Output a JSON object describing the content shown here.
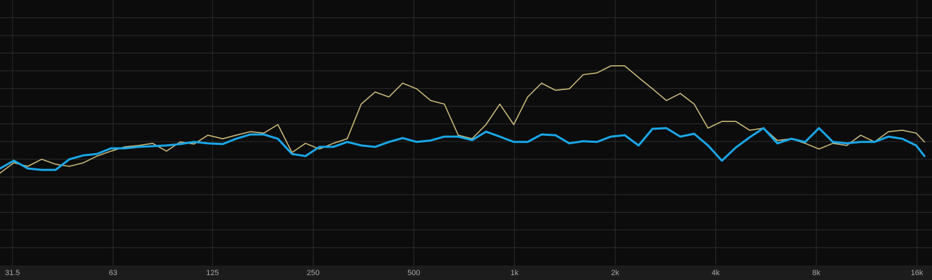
{
  "chart_data": {
    "type": "line",
    "log_x": true,
    "grid": true,
    "xlim": [
      28.9,
      17750
    ],
    "ylim": [
      -40,
      35
    ],
    "xticks": [
      31.5,
      63,
      125,
      250,
      500,
      {
        "value": 1000,
        "label": "1k"
      },
      {
        "value": 2000,
        "label": "2k"
      },
      {
        "value": 4000,
        "label": "4k"
      },
      {
        "value": 8000,
        "label": "8k"
      },
      {
        "value": 16000,
        "label": "16k"
      }
    ],
    "yticks": [
      -35,
      -30,
      -25,
      -20,
      -15,
      -10,
      -5,
      0,
      5,
      10,
      15,
      20,
      25,
      30
    ],
    "x": [
      28.9,
      31.8,
      35.0,
      38.5,
      42.4,
      46.6,
      51.3,
      56.4,
      62.1,
      68.3,
      75.2,
      82.7,
      91.0,
      100,
      110,
      121,
      134,
      147,
      162,
      178,
      196,
      216,
      237,
      261,
      287,
      316,
      348,
      383,
      421,
      463,
      510,
      561,
      617,
      679,
      747,
      822,
      904,
      995,
      1095,
      1205,
      1326,
      1459,
      1605,
      1766,
      1943,
      2138,
      2352,
      2588,
      2848,
      3134,
      3448,
      3794,
      4175,
      4593,
      5054,
      5561,
      6119,
      6732,
      7408,
      8151,
      8968,
      9868,
      10858,
      11947,
      13145,
      14463,
      15914,
      16850
    ],
    "series": [
      {
        "color": "#c8b878",
        "width": 1.6,
        "values": [
          -13.9,
          -11.0,
          -12.0,
          -10.0,
          -11.4,
          -12.0,
          -11.0,
          -9.1,
          -7.7,
          -6.5,
          -6.1,
          -5.5,
          -7.7,
          -5.1,
          -5.7,
          -3.2,
          -4.2,
          -3.2,
          -2.2,
          -2.6,
          -0.2,
          -8.1,
          -5.5,
          -7.1,
          -5.5,
          -4.2,
          5.6,
          9.0,
          7.6,
          11.5,
          9.9,
          6.6,
          5.6,
          -3.2,
          -4.2,
          -0.2,
          5.6,
          -0.2,
          7.6,
          11.5,
          9.5,
          9.9,
          13.9,
          14.4,
          16.4,
          16.4,
          13.1,
          9.9,
          6.6,
          8.6,
          5.6,
          -1.2,
          0.7,
          0.7,
          -1.8,
          -1.2,
          -4.7,
          -4.2,
          -5.5,
          -7.1,
          -5.5,
          -6.1,
          -3.2,
          -5.1,
          -2.2,
          -1.8,
          -2.6,
          -5.1
        ]
      },
      {
        "color": "#1aa7e8",
        "width": 3,
        "values": [
          -12.6,
          -10.4,
          -12.6,
          -13.0,
          -13.0,
          -10.0,
          -8.9,
          -8.5,
          -6.9,
          -6.9,
          -6.5,
          -6.3,
          -6.1,
          -5.7,
          -5.1,
          -5.5,
          -5.7,
          -4.2,
          -3.0,
          -3.0,
          -4.2,
          -8.5,
          -9.1,
          -6.5,
          -6.5,
          -5.1,
          -6.1,
          -6.5,
          -5.1,
          -4.0,
          -5.1,
          -4.7,
          -3.6,
          -3.6,
          -4.6,
          -2.2,
          -3.6,
          -5.1,
          -5.1,
          -3.0,
          -3.2,
          -5.5,
          -4.9,
          -5.1,
          -3.6,
          -3.2,
          -6.1,
          -1.4,
          -1.2,
          -3.6,
          -2.8,
          -6.1,
          -10.4,
          -6.7,
          -3.8,
          -1.2,
          -5.5,
          -4.2,
          -5.1,
          -1.2,
          -5.1,
          -5.5,
          -5.1,
          -5.1,
          -3.6,
          -4.2,
          -6.1,
          -9.1
        ]
      }
    ]
  }
}
